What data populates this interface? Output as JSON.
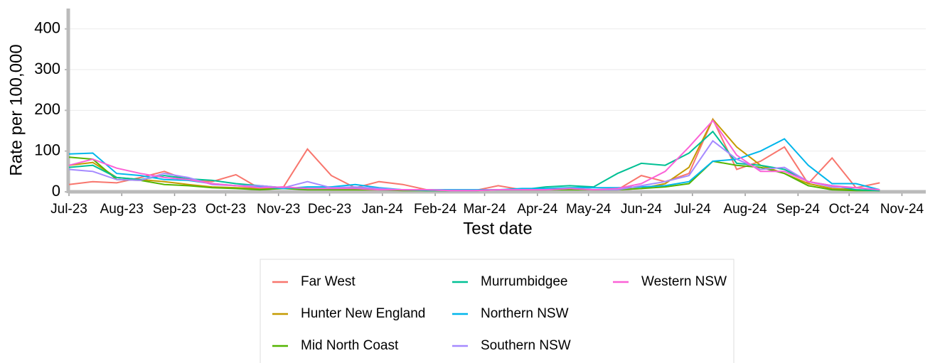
{
  "chart_data": {
    "type": "line",
    "x_label": "Test date",
    "y_label": "Rate per 100,000",
    "x": [
      "2023-07-01",
      "2023-07-15",
      "2023-07-29",
      "2023-08-12",
      "2023-08-26",
      "2023-09-09",
      "2023-09-23",
      "2023-10-07",
      "2023-10-21",
      "2023-11-04",
      "2023-11-18",
      "2023-12-02",
      "2023-12-16",
      "2023-12-30",
      "2024-01-13",
      "2024-01-27",
      "2024-02-10",
      "2024-02-24",
      "2024-03-09",
      "2024-03-23",
      "2024-04-06",
      "2024-04-20",
      "2024-05-04",
      "2024-05-18",
      "2024-06-01",
      "2024-06-15",
      "2024-06-29",
      "2024-07-13",
      "2024-07-27",
      "2024-08-10",
      "2024-08-24",
      "2024-09-07",
      "2024-09-21",
      "2024-10-05",
      "2024-10-19"
    ],
    "series": [
      {
        "name": "Far West",
        "color": "#F8766D",
        "values": [
          18,
          25,
          22,
          35,
          50,
          28,
          25,
          42,
          8,
          12,
          105,
          40,
          10,
          25,
          18,
          5,
          3,
          3,
          15,
          5,
          5,
          8,
          5,
          5,
          40,
          25,
          45,
          178,
          55,
          75,
          110,
          20,
          83,
          10,
          22
        ]
      },
      {
        "name": "Hunter New England",
        "color": "#C49A00",
        "values": [
          65,
          72,
          35,
          30,
          25,
          18,
          12,
          10,
          8,
          10,
          8,
          5,
          5,
          5,
          5,
          3,
          3,
          3,
          5,
          5,
          5,
          8,
          5,
          5,
          8,
          20,
          60,
          178,
          110,
          65,
          45,
          20,
          8,
          5,
          3
        ]
      },
      {
        "name": "Mid North Coast",
        "color": "#53B400",
        "values": [
          85,
          80,
          30,
          28,
          18,
          15,
          10,
          8,
          5,
          8,
          5,
          5,
          5,
          5,
          3,
          3,
          3,
          3,
          5,
          5,
          5,
          5,
          5,
          5,
          8,
          12,
          20,
          75,
          65,
          60,
          45,
          15,
          5,
          3,
          3
        ]
      },
      {
        "name": "Murrumbidgee",
        "color": "#00C094",
        "values": [
          60,
          65,
          35,
          30,
          40,
          32,
          28,
          20,
          15,
          10,
          8,
          8,
          10,
          5,
          5,
          3,
          3,
          3,
          5,
          5,
          12,
          15,
          12,
          45,
          70,
          65,
          95,
          148,
          70,
          65,
          55,
          25,
          15,
          5,
          3
        ]
      },
      {
        "name": "Northern NSW",
        "color": "#00B6EB",
        "values": [
          93,
          95,
          45,
          40,
          30,
          28,
          20,
          15,
          12,
          8,
          12,
          12,
          18,
          10,
          5,
          5,
          5,
          5,
          5,
          8,
          8,
          10,
          10,
          10,
          12,
          15,
          25,
          75,
          80,
          100,
          130,
          65,
          20,
          20,
          5
        ]
      },
      {
        "name": "Southern NSW",
        "color": "#A58AFF",
        "values": [
          55,
          50,
          30,
          28,
          45,
          35,
          18,
          15,
          15,
          10,
          25,
          10,
          12,
          8,
          5,
          5,
          3,
          3,
          5,
          5,
          5,
          8,
          5,
          5,
          15,
          25,
          40,
          125,
          80,
          55,
          60,
          25,
          12,
          10,
          5
        ]
      },
      {
        "name": "Western NSW",
        "color": "#FB61D7",
        "values": [
          65,
          80,
          58,
          45,
          35,
          30,
          20,
          15,
          10,
          12,
          8,
          8,
          8,
          5,
          5,
          5,
          3,
          3,
          5,
          5,
          5,
          8,
          5,
          8,
          20,
          50,
          110,
          175,
          90,
          50,
          50,
          25,
          15,
          10,
          5
        ]
      }
    ],
    "xlim": [
      "2023-07-01",
      "2024-11-15"
    ],
    "xticks": [
      {
        "value": "2023-07-01",
        "label": "Jul-23"
      },
      {
        "value": "2023-08-01",
        "label": "Aug-23"
      },
      {
        "value": "2023-09-01",
        "label": "Sep-23"
      },
      {
        "value": "2023-10-01",
        "label": "Oct-23"
      },
      {
        "value": "2023-11-01",
        "label": "Nov-23"
      },
      {
        "value": "2023-12-01",
        "label": "Dec-23"
      },
      {
        "value": "2024-01-01",
        "label": "Jan-24"
      },
      {
        "value": "2024-02-01",
        "label": "Feb-24"
      },
      {
        "value": "2024-03-01",
        "label": "Mar-24"
      },
      {
        "value": "2024-04-01",
        "label": "Apr-24"
      },
      {
        "value": "2024-05-01",
        "label": "May-24"
      },
      {
        "value": "2024-06-01",
        "label": "Jun-24"
      },
      {
        "value": "2024-07-01",
        "label": "Jul-24"
      },
      {
        "value": "2024-08-01",
        "label": "Aug-24"
      },
      {
        "value": "2024-09-01",
        "label": "Sep-24"
      },
      {
        "value": "2024-10-01",
        "label": "Oct-24"
      },
      {
        "value": "2024-11-01",
        "label": "Nov-24"
      }
    ],
    "ylim": [
      0,
      450
    ],
    "yticks": [
      0,
      100,
      200,
      300,
      400
    ],
    "grid": true
  }
}
